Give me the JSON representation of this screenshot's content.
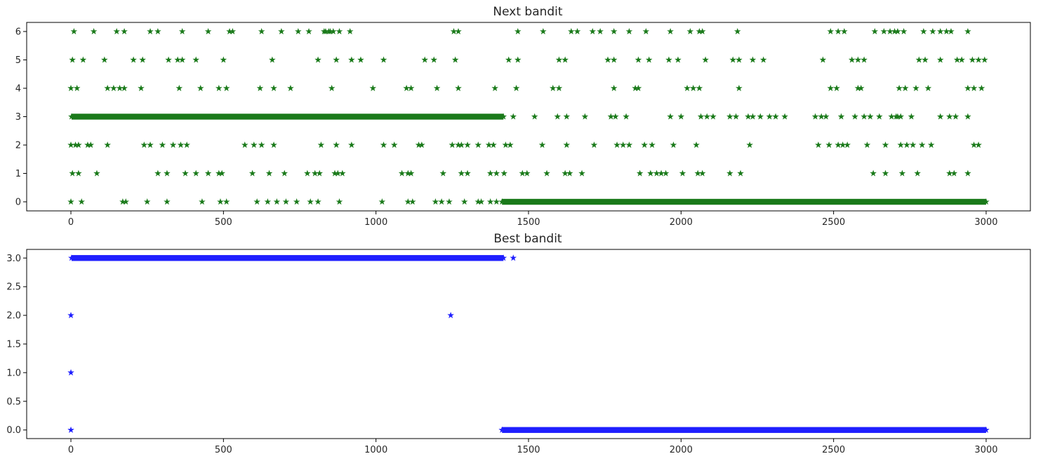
{
  "chart_data": [
    {
      "type": "scatter",
      "title": "Next bandit",
      "marker": "star",
      "color": "#1a7a1a",
      "xlim": [
        -145,
        3145
      ],
      "ylim": [
        -0.32,
        6.32
      ],
      "xticks": [
        0,
        500,
        1000,
        1500,
        2000,
        2500,
        3000
      ],
      "yticks": [
        0,
        1,
        2,
        3,
        4,
        5,
        6
      ],
      "xtick_labels": [
        "0",
        "500",
        "1000",
        "1500",
        "2000",
        "2500",
        "3000"
      ],
      "ytick_labels": [
        "0",
        "1",
        "2",
        "3",
        "4",
        "5",
        "6"
      ],
      "grid": false,
      "dense_runs": [
        {
          "y": 3,
          "x_start": 2,
          "x_end": 1418
        },
        {
          "y": 0,
          "x_start": 1413,
          "x_end": 3000
        }
      ],
      "points": [
        {
          "y": 6,
          "x": [
            10,
            75,
            150,
            175,
            260,
            285,
            365,
            450,
            520,
            530,
            625,
            690,
            745,
            780,
            830,
            835,
            845,
            850,
            860,
            880,
            915,
            1255,
            1270,
            1465,
            1548,
            1640,
            1660,
            1710,
            1735,
            1780,
            1830,
            1885,
            1965,
            2030,
            2060,
            2070,
            2185,
            2490,
            2515,
            2535,
            2635,
            2665,
            2685,
            2700,
            2710,
            2730,
            2795,
            2825,
            2850,
            2870,
            2885,
            2940
          ]
        },
        {
          "y": 5,
          "x": [
            5,
            40,
            110,
            205,
            235,
            320,
            350,
            365,
            410,
            500,
            660,
            810,
            870,
            920,
            950,
            1025,
            1160,
            1190,
            1260,
            1435,
            1465,
            1600,
            1620,
            1760,
            1780,
            1860,
            1895,
            1960,
            1990,
            2080,
            2170,
            2190,
            2235,
            2270,
            2465,
            2560,
            2580,
            2600,
            2780,
            2800,
            2850,
            2905,
            2920,
            2955,
            2975,
            2995
          ]
        },
        {
          "y": 4,
          "x": [
            0,
            20,
            120,
            140,
            160,
            175,
            230,
            355,
            425,
            485,
            510,
            620,
            665,
            720,
            855,
            990,
            1100,
            1115,
            1200,
            1270,
            1390,
            1460,
            1580,
            1600,
            1780,
            1850,
            1860,
            2020,
            2040,
            2060,
            2190,
            2490,
            2510,
            2580,
            2590,
            2715,
            2735,
            2770,
            2810,
            2940,
            2960,
            2985
          ]
        },
        {
          "y": 3,
          "x": [
            1450,
            1520,
            1595,
            1625,
            1685,
            1770,
            1785,
            1820,
            1965,
            2000,
            2065,
            2085,
            2105,
            2160,
            2180,
            2220,
            2235,
            2260,
            2290,
            2310,
            2340,
            2440,
            2460,
            2475,
            2525,
            2570,
            2600,
            2620,
            2650,
            2690,
            2705,
            2710,
            2720,
            2755,
            2850,
            2880,
            2900,
            2940
          ]
        },
        {
          "y": 2,
          "x": [
            0,
            15,
            25,
            55,
            65,
            120,
            240,
            260,
            300,
            335,
            360,
            380,
            570,
            600,
            625,
            665,
            820,
            870,
            920,
            1025,
            1060,
            1140,
            1150,
            1250,
            1270,
            1280,
            1300,
            1335,
            1370,
            1385,
            1425,
            1440,
            1545,
            1625,
            1715,
            1790,
            1810,
            1830,
            1880,
            1905,
            1975,
            2050,
            2225,
            2450,
            2485,
            2515,
            2530,
            2545,
            2610,
            2670,
            2720,
            2740,
            2760,
            2790,
            2820,
            2960,
            2975
          ]
        },
        {
          "y": 1,
          "x": [
            5,
            25,
            85,
            285,
            315,
            375,
            410,
            450,
            485,
            495,
            595,
            650,
            700,
            775,
            800,
            815,
            865,
            875,
            890,
            1085,
            1105,
            1115,
            1220,
            1280,
            1300,
            1375,
            1395,
            1420,
            1480,
            1495,
            1560,
            1620,
            1635,
            1675,
            1865,
            1900,
            1920,
            1935,
            1950,
            2005,
            2055,
            2070,
            2160,
            2195,
            2630,
            2670,
            2725,
            2775,
            2880,
            2895,
            2940
          ]
        },
        {
          "y": 0,
          "x": [
            0,
            35,
            170,
            180,
            250,
            315,
            430,
            490,
            510,
            610,
            645,
            675,
            705,
            740,
            785,
            810,
            880,
            1020,
            1105,
            1120,
            1195,
            1215,
            1240,
            1290,
            1335,
            1345,
            1375,
            1395
          ]
        }
      ]
    },
    {
      "type": "scatter",
      "title": "Best bandit",
      "marker": "star",
      "color": "#1f1fff",
      "xlim": [
        -145,
        3145
      ],
      "ylim": [
        -0.15,
        3.15
      ],
      "xticks": [
        0,
        500,
        1000,
        1500,
        2000,
        2500,
        3000
      ],
      "yticks": [
        0.0,
        0.5,
        1.0,
        1.5,
        2.0,
        2.5,
        3.0
      ],
      "xtick_labels": [
        "0",
        "500",
        "1000",
        "1500",
        "2000",
        "2500",
        "3000"
      ],
      "ytick_labels": [
        "0.0",
        "0.5",
        "1.0",
        "1.5",
        "2.0",
        "2.5",
        "3.0"
      ],
      "grid": false,
      "dense_runs": [
        {
          "y": 3,
          "x_start": 2,
          "x_end": 1418
        },
        {
          "y": 0,
          "x_start": 1413,
          "x_end": 3000
        }
      ],
      "points": [
        {
          "y": 3,
          "x": [
            1450
          ]
        },
        {
          "y": 2,
          "x": [
            0,
            1245
          ]
        },
        {
          "y": 1,
          "x": [
            0
          ]
        },
        {
          "y": 0,
          "x": [
            0
          ]
        }
      ]
    }
  ]
}
